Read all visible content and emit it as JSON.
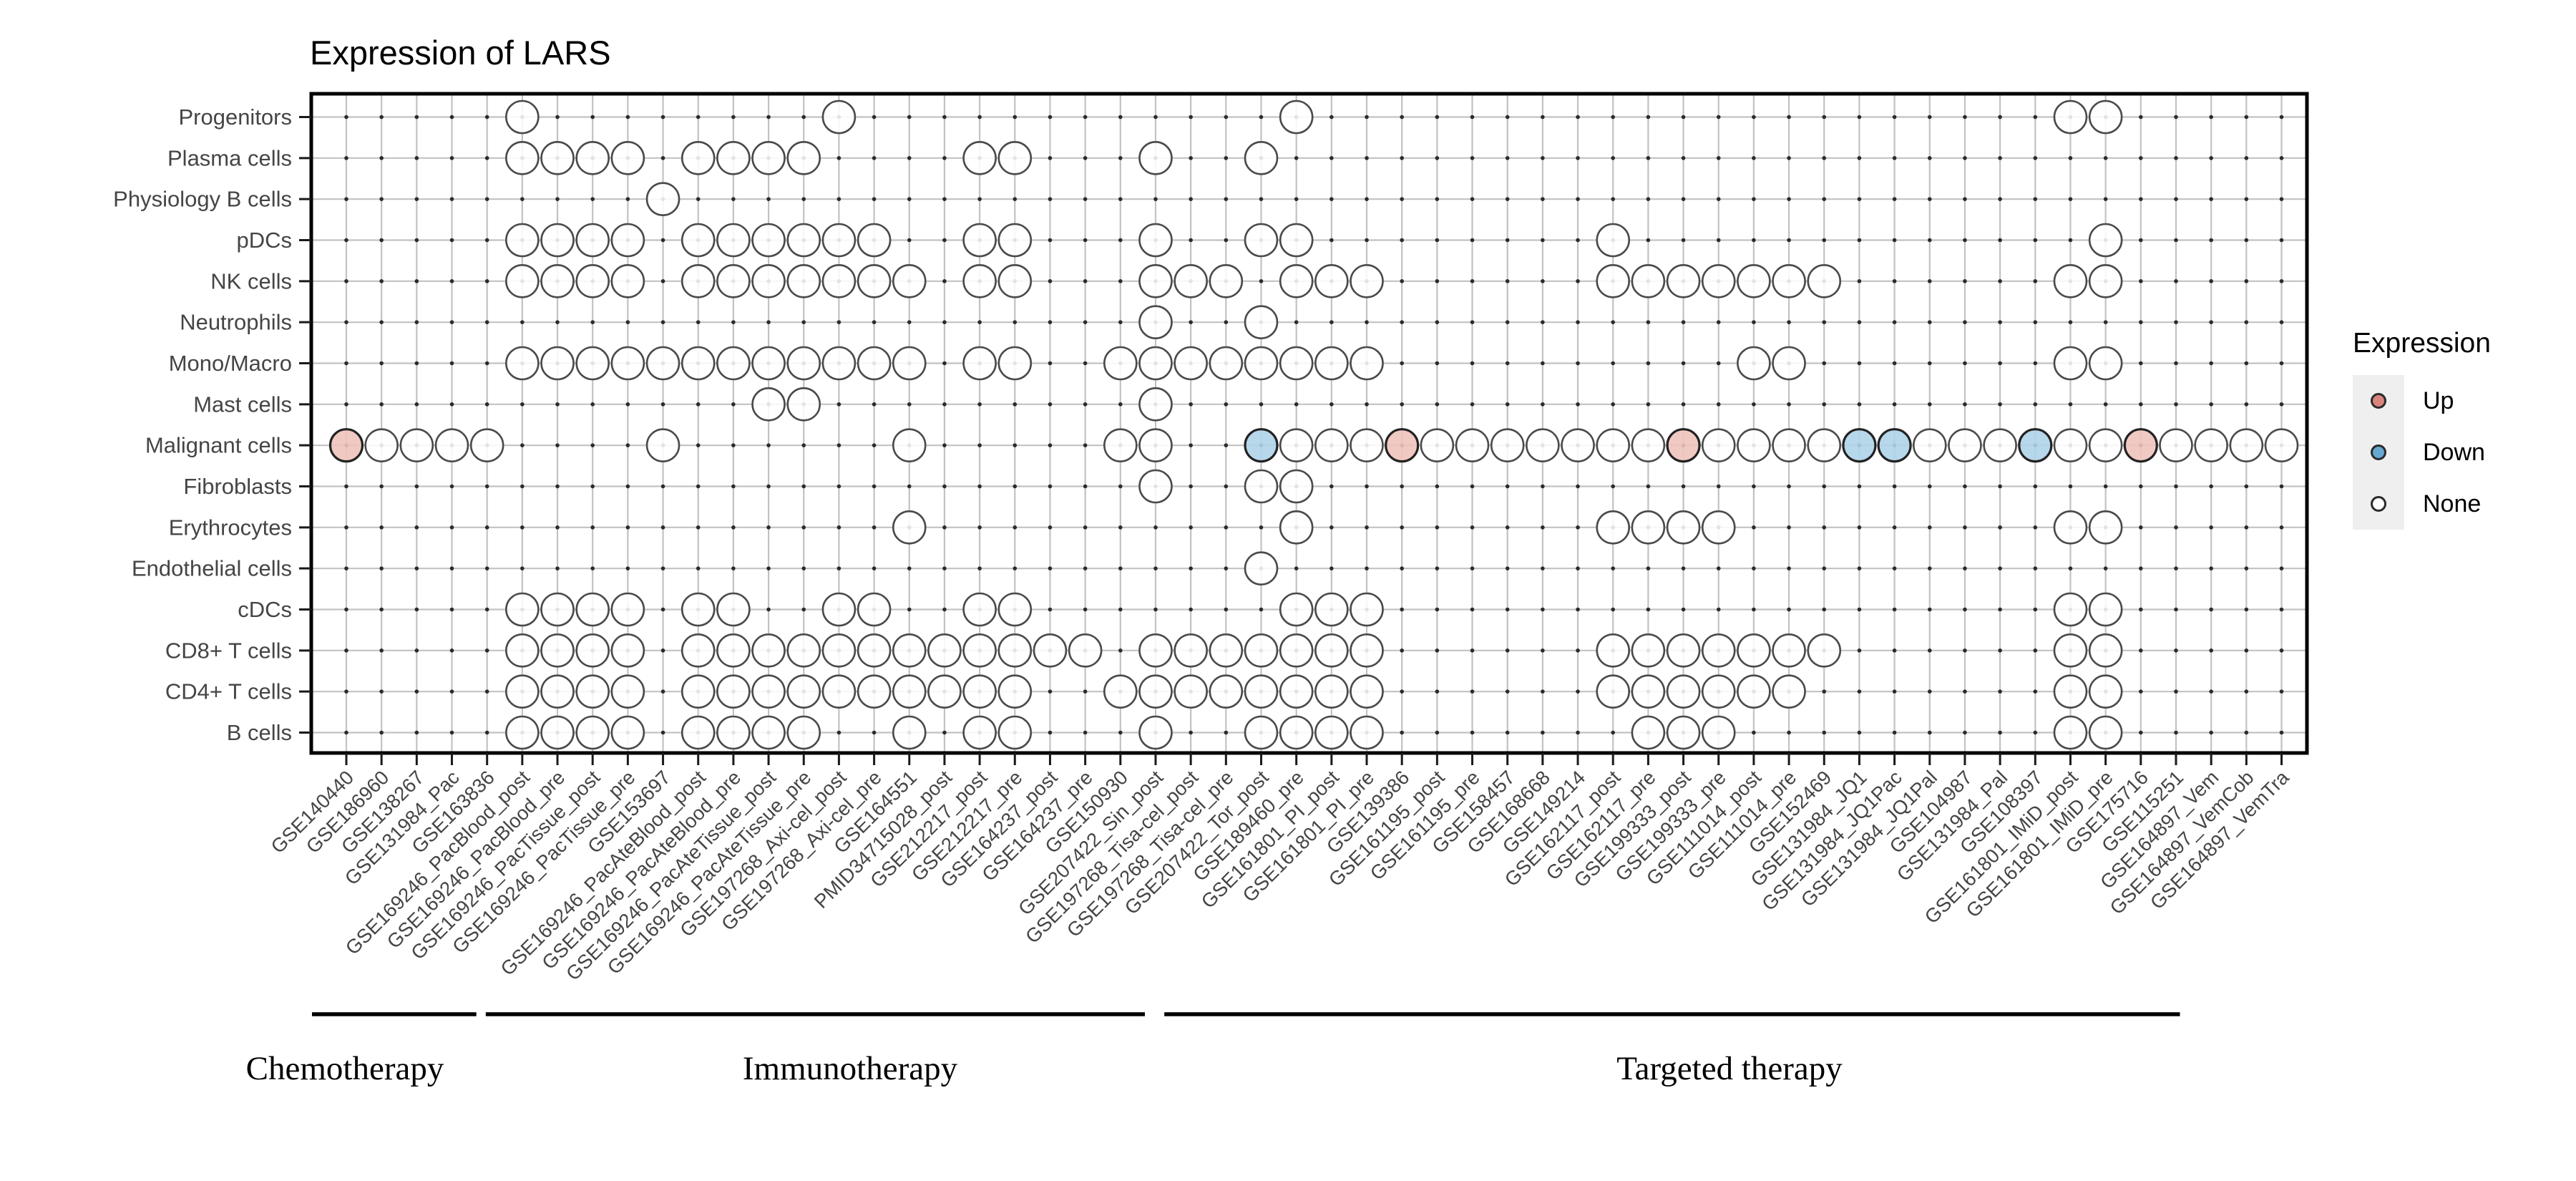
{
  "title": "Expression of LARS",
  "legend": {
    "title": "Expression",
    "items": [
      {
        "label": "Up",
        "state": "up",
        "color": "#d9857e"
      },
      {
        "label": "Down",
        "state": "down",
        "color": "#66a8d0"
      },
      {
        "label": "None",
        "state": "none",
        "color": "#ffffff"
      }
    ]
  },
  "colors": {
    "up_fill": "#efc3bd",
    "down_fill": "#afd3e9",
    "none_fill": "#ffffff",
    "circle_stroke": "#4a4a4a",
    "colored_stroke": "#222222",
    "grid": "#c2c2c2",
    "dot": "#2b2b2b",
    "axis_text": "#454545"
  },
  "chart_data": {
    "type": "heatmap",
    "subtype": "dot-matrix",
    "title": "Expression of LARS",
    "legend_states": [
      "Up",
      "Down",
      "None"
    ],
    "rows": [
      "Progenitors",
      "Plasma cells",
      "Physiology B cells",
      "pDCs",
      "NK cells",
      "Neutrophils",
      "Mono/Macro",
      "Mast cells",
      "Malignant cells",
      "Fibroblasts",
      "Erythrocytes",
      "Endothelial cells",
      "cDCs",
      "CD8+ T cells",
      "CD4+ T cells",
      "B cells"
    ],
    "columns": [
      "GSE140440",
      "GSE186960",
      "GSE138267",
      "GSE131984_Pac",
      "GSE163836",
      "GSE169246_PacBlood_post",
      "GSE169246_PacBlood_pre",
      "GSE169246_PacTissue_post",
      "GSE169246_PacTissue_pre",
      "GSE153697",
      "GSE169246_PacAteBlood_post",
      "GSE169246_PacAteBlood_pre",
      "GSE169246_PacAteTissue_post",
      "GSE169246_PacAteTissue_pre",
      "GSE197268_Axi-cel_post",
      "GSE197268_Axi-cel_pre",
      "GSE164551",
      "PMID34715028_post",
      "GSE212217_post",
      "GSE212217_pre",
      "GSE164237_post",
      "GSE164237_pre",
      "GSE150930",
      "GSE207422_Sin_post",
      "GSE197268_Tisa-cel_post",
      "GSE197268_Tisa-cel_pre",
      "GSE207422_Tor_post",
      "GSE189460_pre",
      "GSE161801_PI_post",
      "GSE161801_PI_pre",
      "GSE139386",
      "GSE161195_post",
      "GSE161195_pre",
      "GSE158457",
      "GSE168668",
      "GSE149214",
      "GSE162117_post",
      "GSE162117_pre",
      "GSE199333_post",
      "GSE199333_pre",
      "GSE111014_post",
      "GSE111014_pre",
      "GSE152469",
      "GSE131984_JQ1",
      "GSE131984_JQ1Pac",
      "GSE131984_JQ1Pal",
      "GSE104987",
      "GSE131984_Pal",
      "GSE108397",
      "GSE161801_IMiD_post",
      "GSE161801_IMiD_pre",
      "GSE175716",
      "GSE115251",
      "GSE164897_Vem",
      "GSE164897_VemCob",
      "GSE164897_VemTra"
    ],
    "groups": [
      {
        "label": "Chemotherapy",
        "start": 0,
        "end": 4
      },
      {
        "label": "Immunotherapy",
        "start": 5,
        "end": 23
      },
      {
        "label": "Targeted therapy",
        "start": 24,
        "end": 55
      }
    ],
    "cells": [
      {
        "label": "Progenitors",
        "none": [
          5,
          14,
          27,
          49,
          50
        ],
        "up": [],
        "down": []
      },
      {
        "label": "Plasma cells",
        "none": [
          5,
          6,
          7,
          8,
          10,
          11,
          12,
          13,
          18,
          19,
          23,
          26
        ],
        "up": [],
        "down": []
      },
      {
        "label": "Physiology B cells",
        "none": [
          9
        ],
        "up": [],
        "down": []
      },
      {
        "label": "pDCs",
        "none": [
          5,
          6,
          7,
          8,
          10,
          11,
          12,
          13,
          14,
          15,
          18,
          19,
          23,
          26,
          27,
          36,
          50
        ],
        "up": [],
        "down": []
      },
      {
        "label": "NK cells",
        "none": [
          5,
          6,
          7,
          8,
          10,
          11,
          12,
          13,
          14,
          15,
          16,
          18,
          19,
          23,
          24,
          25,
          27,
          28,
          29,
          36,
          37,
          38,
          39,
          40,
          41,
          42,
          49,
          50
        ],
        "up": [],
        "down": []
      },
      {
        "label": "Neutrophils",
        "none": [
          23,
          26
        ],
        "up": [],
        "down": []
      },
      {
        "label": "Mono/Macro",
        "none": [
          5,
          6,
          7,
          8,
          9,
          10,
          11,
          12,
          13,
          14,
          15,
          16,
          18,
          19,
          22,
          23,
          24,
          25,
          26,
          27,
          28,
          29,
          40,
          41,
          49,
          50
        ],
        "up": [],
        "down": []
      },
      {
        "label": "Mast cells",
        "none": [
          12,
          13,
          23
        ],
        "up": [],
        "down": []
      },
      {
        "label": "Malignant cells",
        "none": [
          1,
          2,
          3,
          4,
          9,
          16,
          22,
          23,
          27,
          28,
          29,
          31,
          32,
          33,
          34,
          35,
          36,
          37,
          39,
          40,
          41,
          42,
          45,
          46,
          47,
          49,
          50,
          52,
          53,
          54,
          55
        ],
        "up": [
          0,
          30,
          38,
          51
        ],
        "down": [
          26,
          43,
          44,
          48
        ]
      },
      {
        "label": "Fibroblasts",
        "none": [
          23,
          26,
          27
        ],
        "up": [],
        "down": []
      },
      {
        "label": "Erythrocytes",
        "none": [
          16,
          27,
          36,
          37,
          38,
          39,
          49,
          50
        ],
        "up": [],
        "down": []
      },
      {
        "label": "Endothelial cells",
        "none": [
          26
        ],
        "up": [],
        "down": []
      },
      {
        "label": "cDCs",
        "none": [
          5,
          6,
          7,
          8,
          10,
          11,
          14,
          15,
          18,
          19,
          27,
          28,
          29,
          49,
          50
        ],
        "up": [],
        "down": []
      },
      {
        "label": "CD8+ T cells",
        "none": [
          5,
          6,
          7,
          8,
          10,
          11,
          12,
          13,
          14,
          15,
          16,
          17,
          18,
          19,
          20,
          21,
          23,
          24,
          25,
          26,
          27,
          28,
          29,
          36,
          37,
          38,
          39,
          40,
          41,
          42,
          49,
          50
        ],
        "up": [],
        "down": []
      },
      {
        "label": "CD4+ T cells",
        "none": [
          5,
          6,
          7,
          8,
          10,
          11,
          12,
          13,
          14,
          15,
          16,
          17,
          18,
          19,
          22,
          23,
          24,
          25,
          26,
          27,
          28,
          29,
          36,
          37,
          38,
          39,
          40,
          41,
          49,
          50
        ],
        "up": [],
        "down": []
      },
      {
        "label": "B cells",
        "none": [
          5,
          6,
          7,
          8,
          10,
          11,
          12,
          13,
          16,
          18,
          19,
          23,
          26,
          27,
          28,
          29,
          37,
          38,
          39,
          49,
          50
        ],
        "up": [],
        "down": []
      }
    ]
  }
}
